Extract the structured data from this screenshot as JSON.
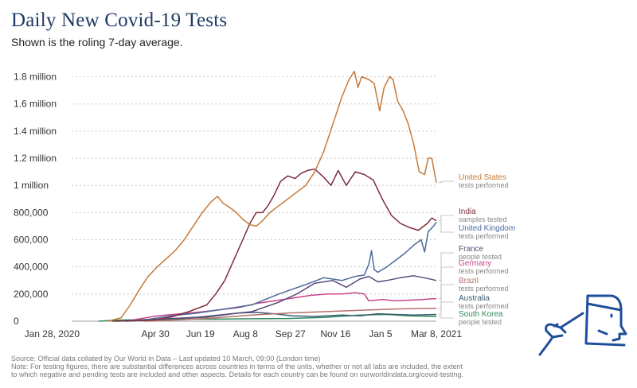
{
  "header": {
    "title": "Daily New Covid-19 Tests",
    "subtitle": "Shown is the roling 7-day average."
  },
  "footer": {
    "source": "Source: Official data collated by Our World in Data – Last updated 10 March, 09:00 (London time)",
    "note_line1": "Note: For testing figures, there are substantial differences across countries in terms of the units, whether or not all labs are included, the extent",
    "note_line2": "to which negative and pending tests are included and other aspects. Details for each country can be found on ourworldindata.org/covid-testing."
  },
  "icon": {
    "name": "person-taking-nasal-swab-icon",
    "color": "#1f4e9c"
  },
  "chart_data": {
    "type": "line",
    "title": "Daily New Covid-19 Tests",
    "subtitle": "Shown is the roling 7-day average.",
    "xlabel": "",
    "ylabel": "",
    "x_range": [
      0,
      405
    ],
    "ylim": [
      0,
      1850000
    ],
    "grid": "horizontal dotted",
    "x_ticks": [
      {
        "t": 0,
        "label": "Jan 28, 2020"
      },
      {
        "t": 93,
        "label": "Apr 30"
      },
      {
        "t": 143,
        "label": "Jun 19"
      },
      {
        "t": 193,
        "label": "Aug 8"
      },
      {
        "t": 243,
        "label": "Sep 27"
      },
      {
        "t": 293,
        "label": "Nov 16"
      },
      {
        "t": 343,
        "label": "Jan 5"
      },
      {
        "t": 405,
        "label": "Mar 8, 2021"
      }
    ],
    "y_ticks": [
      {
        "v": 0,
        "label": "0"
      },
      {
        "v": 200000,
        "label": "200,000"
      },
      {
        "v": 400000,
        "label": "400,000"
      },
      {
        "v": 600000,
        "label": "600,000"
      },
      {
        "v": 800000,
        "label": "800,000"
      },
      {
        "v": 1000000,
        "label": "1 million"
      },
      {
        "v": 1200000,
        "label": "1.2 million"
      },
      {
        "v": 1400000,
        "label": "1.4 million"
      },
      {
        "v": 1600000,
        "label": "1.6 million"
      },
      {
        "v": 1800000,
        "label": "1.8 million"
      }
    ],
    "series": [
      {
        "name": "United States",
        "unit": "tests performed",
        "color": "#c47a3a",
        "points": [
          [
            40,
            0
          ],
          [
            55,
            25000
          ],
          [
            65,
            120000
          ],
          [
            75,
            230000
          ],
          [
            85,
            330000
          ],
          [
            95,
            400000
          ],
          [
            105,
            460000
          ],
          [
            115,
            520000
          ],
          [
            125,
            600000
          ],
          [
            135,
            700000
          ],
          [
            145,
            800000
          ],
          [
            155,
            880000
          ],
          [
            162,
            920000
          ],
          [
            168,
            870000
          ],
          [
            175,
            840000
          ],
          [
            183,
            800000
          ],
          [
            190,
            750000
          ],
          [
            198,
            710000
          ],
          [
            205,
            700000
          ],
          [
            212,
            740000
          ],
          [
            220,
            800000
          ],
          [
            230,
            850000
          ],
          [
            240,
            900000
          ],
          [
            250,
            950000
          ],
          [
            260,
            1000000
          ],
          [
            270,
            1100000
          ],
          [
            280,
            1250000
          ],
          [
            290,
            1450000
          ],
          [
            300,
            1650000
          ],
          [
            308,
            1780000
          ],
          [
            314,
            1840000
          ],
          [
            318,
            1720000
          ],
          [
            322,
            1800000
          ],
          [
            330,
            1780000
          ],
          [
            336,
            1750000
          ],
          [
            342,
            1550000
          ],
          [
            347,
            1720000
          ],
          [
            353,
            1800000
          ],
          [
            357,
            1780000
          ],
          [
            362,
            1620000
          ],
          [
            368,
            1550000
          ],
          [
            374,
            1450000
          ],
          [
            380,
            1300000
          ],
          [
            386,
            1100000
          ],
          [
            392,
            1080000
          ],
          [
            396,
            1200000
          ],
          [
            400,
            1200000
          ],
          [
            405,
            1020000
          ]
        ]
      },
      {
        "name": "India",
        "unit": "samples tested",
        "color": "#7a2e3e",
        "points": [
          [
            45,
            0
          ],
          [
            90,
            8000
          ],
          [
            110,
            30000
          ],
          [
            130,
            70000
          ],
          [
            150,
            120000
          ],
          [
            160,
            200000
          ],
          [
            170,
            300000
          ],
          [
            180,
            450000
          ],
          [
            190,
            600000
          ],
          [
            198,
            720000
          ],
          [
            205,
            800000
          ],
          [
            212,
            800000
          ],
          [
            218,
            850000
          ],
          [
            225,
            930000
          ],
          [
            232,
            1030000
          ],
          [
            240,
            1070000
          ],
          [
            248,
            1050000
          ],
          [
            255,
            1090000
          ],
          [
            262,
            1110000
          ],
          [
            270,
            1120000
          ],
          [
            280,
            1060000
          ],
          [
            288,
            1000000
          ],
          [
            296,
            1110000
          ],
          [
            305,
            1000000
          ],
          [
            315,
            1100000
          ],
          [
            325,
            1080000
          ],
          [
            335,
            1040000
          ],
          [
            345,
            900000
          ],
          [
            355,
            780000
          ],
          [
            365,
            720000
          ],
          [
            375,
            690000
          ],
          [
            385,
            670000
          ],
          [
            395,
            720000
          ],
          [
            400,
            760000
          ],
          [
            405,
            740000
          ]
        ]
      },
      {
        "name": "United Kingdom",
        "unit": "tests performed",
        "color": "#4c6a9c",
        "points": [
          [
            50,
            0
          ],
          [
            80,
            8000
          ],
          [
            110,
            40000
          ],
          [
            140,
            60000
          ],
          [
            170,
            90000
          ],
          [
            200,
            120000
          ],
          [
            230,
            200000
          ],
          [
            260,
            270000
          ],
          [
            280,
            320000
          ],
          [
            300,
            300000
          ],
          [
            315,
            330000
          ],
          [
            325,
            340000
          ],
          [
            330,
            420000
          ],
          [
            333,
            520000
          ],
          [
            336,
            380000
          ],
          [
            340,
            360000
          ],
          [
            350,
            400000
          ],
          [
            360,
            450000
          ],
          [
            370,
            500000
          ],
          [
            380,
            560000
          ],
          [
            388,
            600000
          ],
          [
            392,
            510000
          ],
          [
            396,
            660000
          ],
          [
            402,
            700000
          ],
          [
            405,
            730000
          ]
        ]
      },
      {
        "name": "France",
        "unit": "people tested",
        "color": "#5a4a7a",
        "points": [
          [
            60,
            0
          ],
          [
            100,
            15000
          ],
          [
            140,
            30000
          ],
          [
            170,
            50000
          ],
          [
            200,
            70000
          ],
          [
            230,
            140000
          ],
          [
            250,
            200000
          ],
          [
            270,
            280000
          ],
          [
            290,
            300000
          ],
          [
            305,
            250000
          ],
          [
            320,
            310000
          ],
          [
            330,
            330000
          ],
          [
            340,
            290000
          ],
          [
            350,
            300000
          ],
          [
            365,
            320000
          ],
          [
            380,
            335000
          ],
          [
            395,
            315000
          ],
          [
            405,
            300000
          ]
        ]
      },
      {
        "name": "Germany",
        "unit": "tests performed",
        "color": "#c7478a",
        "points": [
          [
            60,
            0
          ],
          [
            95,
            40000
          ],
          [
            130,
            60000
          ],
          [
            160,
            80000
          ],
          [
            185,
            100000
          ],
          [
            205,
            130000
          ],
          [
            225,
            150000
          ],
          [
            245,
            170000
          ],
          [
            265,
            190000
          ],
          [
            285,
            200000
          ],
          [
            300,
            200000
          ],
          [
            315,
            210000
          ],
          [
            325,
            200000
          ],
          [
            330,
            150000
          ],
          [
            345,
            160000
          ],
          [
            360,
            150000
          ],
          [
            375,
            155000
          ],
          [
            390,
            160000
          ],
          [
            400,
            165000
          ],
          [
            405,
            165000
          ]
        ]
      },
      {
        "name": "Brazil",
        "unit": "tests performed",
        "color": "#b5706a",
        "points": [
          [
            80,
            0
          ],
          [
            120,
            10000
          ],
          [
            160,
            25000
          ],
          [
            200,
            45000
          ],
          [
            240,
            60000
          ],
          [
            280,
            70000
          ],
          [
            320,
            80000
          ],
          [
            360,
            90000
          ],
          [
            405,
            95000
          ]
        ]
      },
      {
        "name": "Australia",
        "unit": "tests performed",
        "color": "#3d5d72",
        "points": [
          [
            60,
            0
          ],
          [
            100,
            15000
          ],
          [
            150,
            30000
          ],
          [
            185,
            60000
          ],
          [
            205,
            65000
          ],
          [
            225,
            55000
          ],
          [
            245,
            40000
          ],
          [
            270,
            35000
          ],
          [
            300,
            45000
          ],
          [
            320,
            40000
          ],
          [
            340,
            55000
          ],
          [
            360,
            50000
          ],
          [
            380,
            45000
          ],
          [
            405,
            50000
          ]
        ]
      },
      {
        "name": "South Korea",
        "unit": "people tested",
        "color": "#2e8a5e",
        "points": [
          [
            30,
            0
          ],
          [
            50,
            8000
          ],
          [
            80,
            12000
          ],
          [
            120,
            15000
          ],
          [
            160,
            15000
          ],
          [
            200,
            18000
          ],
          [
            240,
            20000
          ],
          [
            280,
            28000
          ],
          [
            320,
            45000
          ],
          [
            350,
            50000
          ],
          [
            375,
            40000
          ],
          [
            405,
            35000
          ]
        ]
      }
    ]
  }
}
